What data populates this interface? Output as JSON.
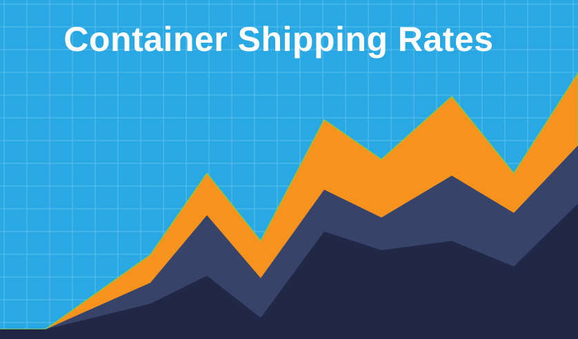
{
  "chart_data": {
    "type": "area",
    "title": "Container Shipping Rates",
    "xlabel": "",
    "ylabel": "",
    "grid": true,
    "legend": "none",
    "x": [
      0,
      1,
      2,
      3,
      4,
      5,
      6,
      7,
      8,
      9
    ],
    "ylim": [
      0,
      100
    ],
    "series": [
      {
        "values": [
          0,
          0,
          32,
          67,
          38,
          90,
          73,
          100,
          67,
          110
        ],
        "color": "#f6931f"
      },
      {
        "values": [
          0,
          0,
          20,
          49,
          22,
          60,
          48,
          66,
          50,
          79
        ],
        "color": "#374369"
      },
      {
        "values": [
          0,
          0,
          11,
          23,
          5,
          42,
          34,
          38,
          27,
          54
        ],
        "color": "#212845"
      }
    ]
  },
  "colors": {
    "background": "#29a8e3",
    "grid": "#5cc0ee",
    "edge": "#8fc63f"
  }
}
